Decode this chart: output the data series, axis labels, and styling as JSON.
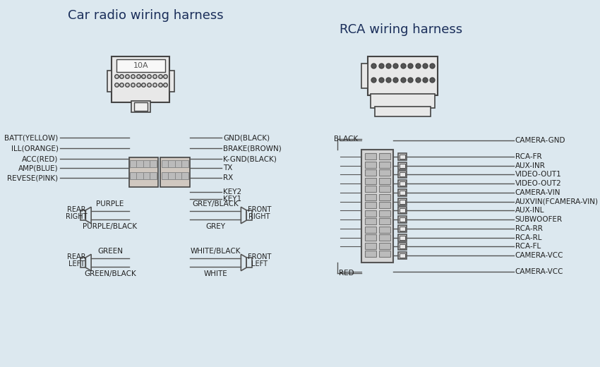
{
  "bg_color": "#dce8ef",
  "title_color": "#1a2e5a",
  "line_color": "#555555",
  "text_color": "#222222",
  "title_left": "Car radio wiring harness",
  "title_right": "RCA wiring harness",
  "left_labels": [
    "BATT(YELLOW)",
    "ILL(ORANGE)",
    "ACC(RED)",
    "AMP(BLUE)",
    "REVESE(PINK)"
  ],
  "right_labels": [
    "GND(BLACK)",
    "BRAKE(BROWN)",
    "K-GND(BLACK)",
    "TX",
    "RX"
  ],
  "rca_labels": [
    "RCA-FR",
    "AUX-INR",
    "VIDEO-OUT1",
    "VIDEO-OUT2",
    "CAMERA-VIN",
    "AUXVIN(FCAMERA-VIN)",
    "AUX-INL",
    "SUBWOOFER",
    "RCA-RR",
    "RCA-RL",
    "RCA-FL",
    "CAMERA-VCC"
  ]
}
